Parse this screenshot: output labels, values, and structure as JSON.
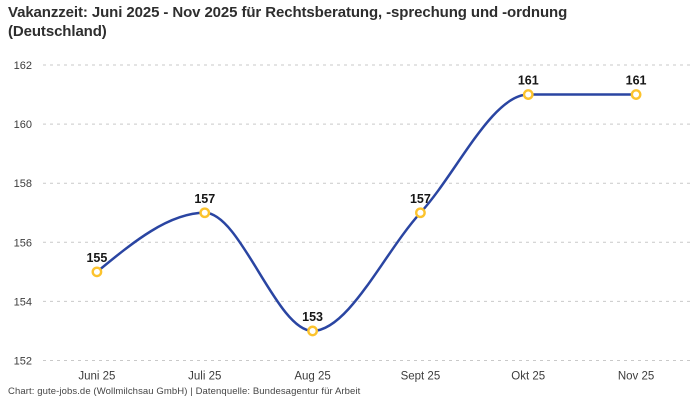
{
  "header": {
    "title": "Vakanzzeit: Juni 2025 - Nov 2025 für Rechtsberatung, -sprechung und -ordnung (Deutschland)"
  },
  "footer": {
    "attribution": "Chart: gute-jobs.de (Wollmilchsau GmbH) | Datenquelle: Bundesagentur für Arbeit"
  },
  "chart_data": {
    "type": "line",
    "title": "Vakanzzeit: Juni 2025 - Nov 2025 für Rechtsberatung, -sprechung und -ordnung (Deutschland)",
    "categories": [
      "Juni 25",
      "Juli 25",
      "Aug 25",
      "Sept 25",
      "Okt 25",
      "Nov 25"
    ],
    "values": [
      155,
      157,
      153,
      157,
      161,
      161
    ],
    "data_labels": [
      "155",
      "157",
      "153",
      "157",
      "161",
      "161"
    ],
    "xlabel": "",
    "ylabel": "",
    "ylim": [
      152,
      162
    ],
    "yticks": [
      152,
      154,
      156,
      158,
      160,
      162
    ],
    "grid": "horizontal-dashed",
    "legend": "none",
    "curve": "monotone-smooth",
    "line_color": "#2a45a2",
    "marker_stroke_color": "#fcc32d",
    "marker_fill_color": "#ffffff",
    "grid_color": "#c9c9c9"
  }
}
